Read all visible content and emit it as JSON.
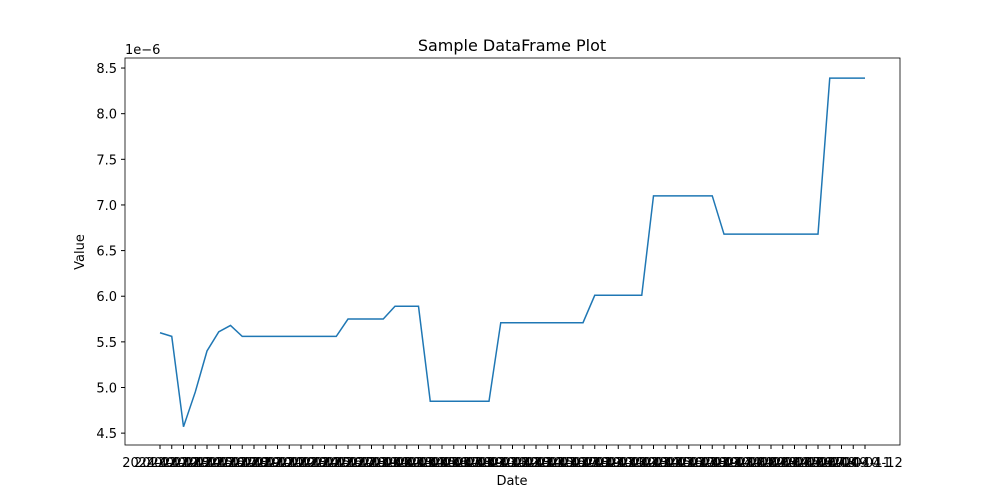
{
  "chart_data": {
    "type": "line",
    "title": "Sample DataFrame Plot",
    "xlabel": "Date",
    "ylabel": "Value",
    "offset_text": "1e−6",
    "color": "#1f77b4",
    "categories": [
      "2024-02-12",
      "2024-02-13",
      "2024-02-14",
      "2024-02-15",
      "2024-02-16",
      "2024-02-17",
      "2024-02-18",
      "2024-02-19",
      "2024-02-20",
      "2024-02-21",
      "2024-02-22",
      "2024-02-23",
      "2024-02-24",
      "2024-02-25",
      "2024-02-26",
      "2024-02-27",
      "2024-02-28",
      "2024-02-29",
      "2024-03-01",
      "2024-03-02",
      "2024-03-03",
      "2024-03-04",
      "2024-03-05",
      "2024-03-06",
      "2024-03-07",
      "2024-03-08",
      "2024-03-09",
      "2024-03-10",
      "2024-03-11",
      "2024-03-12",
      "2024-03-13",
      "2024-03-14",
      "2024-03-15",
      "2024-03-16",
      "2024-03-17",
      "2024-03-18",
      "2024-03-19",
      "2024-03-20",
      "2024-03-21",
      "2024-03-22",
      "2024-03-23",
      "2024-03-24",
      "2024-03-25",
      "2024-03-26",
      "2024-03-27",
      "2024-03-28",
      "2024-03-29",
      "2024-03-30",
      "2024-03-31",
      "2024-04-01",
      "2024-04-02",
      "2024-04-03",
      "2024-04-04",
      "2024-04-05",
      "2024-04-06",
      "2024-04-07",
      "2024-04-08",
      "2024-04-09",
      "2024-04-10",
      "2024-04-11",
      "2024-04-12"
    ],
    "values": [
      5.6,
      5.56,
      4.57,
      4.95,
      5.4,
      5.61,
      5.68,
      5.56,
      5.56,
      5.56,
      5.56,
      5.56,
      5.56,
      5.56,
      5.56,
      5.56,
      5.75,
      5.75,
      5.75,
      5.75,
      5.89,
      5.89,
      5.89,
      4.85,
      4.85,
      4.85,
      4.85,
      4.85,
      4.85,
      5.71,
      5.71,
      5.71,
      5.71,
      5.71,
      5.71,
      5.71,
      5.71,
      6.01,
      6.01,
      6.01,
      6.01,
      6.01,
      7.1,
      7.1,
      7.1,
      7.1,
      7.1,
      7.1,
      6.68,
      6.68,
      6.68,
      6.68,
      6.68,
      6.68,
      6.68,
      6.68,
      6.68,
      8.39,
      8.39,
      8.39,
      8.39
    ],
    "ylim": [
      4.37,
      8.61
    ],
    "yticks": [
      4.5,
      {
        "value": 5,
        "label": "5.0"
      },
      5.5,
      {
        "value": 6,
        "label": "6.0"
      },
      6.5,
      {
        "value": 7,
        "label": "7.0"
      },
      7.5,
      {
        "value": 8,
        "label": "8.0"
      },
      8.5
    ]
  }
}
